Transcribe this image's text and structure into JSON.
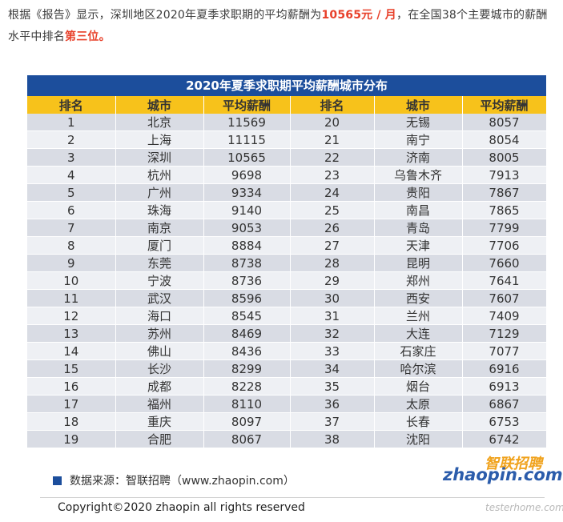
{
  "intro": {
    "text_1": "根据《报告》显示，深圳地区2020年夏季求职期的平均薪酬为",
    "highlight_salary": "10565元 / 月",
    "text_2": "，在全国38个主要城市的薪酬水平中排名",
    "highlight_rank": "第三位。"
  },
  "table": {
    "title": "2020年夏季求职期平均薪酬城市分布",
    "headers": [
      "排名",
      "城市",
      "平均薪酬",
      "排名",
      "城市",
      "平均薪酬"
    ],
    "rows": [
      [
        "1",
        "北京",
        "11569",
        "20",
        "无锡",
        "8057"
      ],
      [
        "2",
        "上海",
        "11115",
        "21",
        "南宁",
        "8054"
      ],
      [
        "3",
        "深圳",
        "10565",
        "22",
        "济南",
        "8005"
      ],
      [
        "4",
        "杭州",
        "9698",
        "23",
        "乌鲁木齐",
        "7913"
      ],
      [
        "5",
        "广州",
        "9334",
        "24",
        "贵阳",
        "7867"
      ],
      [
        "6",
        "珠海",
        "9140",
        "25",
        "南昌",
        "7865"
      ],
      [
        "7",
        "南京",
        "9053",
        "26",
        "青岛",
        "7799"
      ],
      [
        "8",
        "厦门",
        "8884",
        "27",
        "天津",
        "7706"
      ],
      [
        "9",
        "东莞",
        "8738",
        "28",
        "昆明",
        "7660"
      ],
      [
        "10",
        "宁波",
        "8736",
        "29",
        "郑州",
        "7641"
      ],
      [
        "11",
        "武汉",
        "8596",
        "30",
        "西安",
        "7607"
      ],
      [
        "12",
        "海口",
        "8545",
        "31",
        "兰州",
        "7409"
      ],
      [
        "13",
        "苏州",
        "8469",
        "32",
        "大连",
        "7129"
      ],
      [
        "14",
        "佛山",
        "8436",
        "33",
        "石家庄",
        "7077"
      ],
      [
        "15",
        "长沙",
        "8299",
        "34",
        "哈尔滨",
        "6916"
      ],
      [
        "16",
        "成都",
        "8228",
        "35",
        "烟台",
        "6913"
      ],
      [
        "17",
        "福州",
        "8110",
        "36",
        "太原",
        "6867"
      ],
      [
        "18",
        "重庆",
        "8097",
        "37",
        "长春",
        "6753"
      ],
      [
        "19",
        "合肥",
        "8067",
        "38",
        "沈阳",
        "6742"
      ]
    ]
  },
  "source": {
    "text": "数据来源：智联招聘（www.zhaopin.com）"
  },
  "logo": {
    "cn": "智联招聘",
    "en": "zhaopin.com"
  },
  "footer": {
    "copyright": "Copyright©2020 zhaopin all rights reserved"
  },
  "watermark": {
    "text": "testerhome.com"
  },
  "colors": {
    "title_bar": "#1c4e9c",
    "header_row": "#f7c21b",
    "row_dark": "#d9dce4",
    "row_light": "#eef0f4",
    "highlight_text": "#e8402a"
  }
}
